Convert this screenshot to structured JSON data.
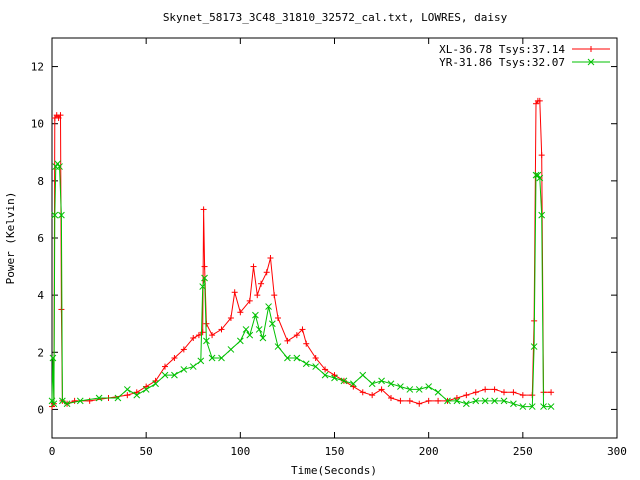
{
  "chart_data": {
    "type": "line",
    "title": "Skynet_58173_3C48_31810_32572_cal.txt, LOWRES, daisy",
    "xlabel": "Time(Seconds)",
    "ylabel": "Power (Kelvin)",
    "xlim": [
      0,
      300
    ],
    "ylim": [
      -1,
      13
    ],
    "xticks": [
      "0",
      "50",
      "100",
      "150",
      "200",
      "250",
      "300"
    ],
    "yticks": [
      "0",
      "2",
      "4",
      "6",
      "8",
      "10",
      "12"
    ],
    "grid": false,
    "legend_position": "top-right",
    "series": [
      {
        "name": "XL-36.78 Tsys:37.14",
        "color": "#ff0000",
        "marker": "plus",
        "points": [
          [
            0,
            0.1
          ],
          [
            1,
            0.2
          ],
          [
            1.5,
            10.2
          ],
          [
            2.5,
            10.3
          ],
          [
            3.5,
            10.2
          ],
          [
            4.5,
            10.3
          ],
          [
            5,
            3.5
          ],
          [
            5.5,
            0.3
          ],
          [
            8,
            0.2
          ],
          [
            12,
            0.3
          ],
          [
            20,
            0.3
          ],
          [
            30,
            0.4
          ],
          [
            40,
            0.5
          ],
          [
            45,
            0.6
          ],
          [
            50,
            0.8
          ],
          [
            55,
            1.0
          ],
          [
            60,
            1.5
          ],
          [
            65,
            1.8
          ],
          [
            70,
            2.1
          ],
          [
            75,
            2.5
          ],
          [
            78,
            2.6
          ],
          [
            80,
            2.7
          ],
          [
            80.5,
            7.0
          ],
          [
            81,
            5.0
          ],
          [
            82,
            3.0
          ],
          [
            85,
            2.6
          ],
          [
            90,
            2.8
          ],
          [
            95,
            3.2
          ],
          [
            97,
            4.1
          ],
          [
            100,
            3.4
          ],
          [
            105,
            3.8
          ],
          [
            107,
            5.0
          ],
          [
            109,
            4.0
          ],
          [
            111,
            4.4
          ],
          [
            114,
            4.8
          ],
          [
            116,
            5.3
          ],
          [
            118,
            4.0
          ],
          [
            120,
            3.2
          ],
          [
            125,
            2.4
          ],
          [
            130,
            2.6
          ],
          [
            133,
            2.8
          ],
          [
            135,
            2.3
          ],
          [
            140,
            1.8
          ],
          [
            145,
            1.4
          ],
          [
            150,
            1.2
          ],
          [
            155,
            1.0
          ],
          [
            160,
            0.8
          ],
          [
            165,
            0.6
          ],
          [
            170,
            0.5
          ],
          [
            175,
            0.7
          ],
          [
            180,
            0.4
          ],
          [
            185,
            0.3
          ],
          [
            190,
            0.3
          ],
          [
            195,
            0.2
          ],
          [
            200,
            0.3
          ],
          [
            205,
            0.3
          ],
          [
            210,
            0.3
          ],
          [
            215,
            0.4
          ],
          [
            220,
            0.5
          ],
          [
            225,
            0.6
          ],
          [
            230,
            0.7
          ],
          [
            235,
            0.7
          ],
          [
            240,
            0.6
          ],
          [
            245,
            0.6
          ],
          [
            250,
            0.5
          ],
          [
            255,
            0.5
          ],
          [
            256,
            3.1
          ],
          [
            257,
            10.7
          ],
          [
            258,
            10.8
          ],
          [
            259,
            10.8
          ],
          [
            260,
            8.9
          ],
          [
            261,
            0.6
          ],
          [
            265,
            0.6
          ]
        ]
      },
      {
        "name": "YR-31.86 Tsys:32.07",
        "color": "#00c000",
        "marker": "cross",
        "points": [
          [
            0,
            0.3
          ],
          [
            0.5,
            1.8
          ],
          [
            1,
            0.2
          ],
          [
            1.5,
            6.8
          ],
          [
            2,
            8.5
          ],
          [
            3,
            8.6
          ],
          [
            4,
            8.5
          ],
          [
            5,
            6.8
          ],
          [
            5.5,
            0.3
          ],
          [
            8,
            0.2
          ],
          [
            15,
            0.3
          ],
          [
            25,
            0.4
          ],
          [
            35,
            0.4
          ],
          [
            40,
            0.7
          ],
          [
            45,
            0.5
          ],
          [
            50,
            0.7
          ],
          [
            55,
            0.9
          ],
          [
            60,
            1.2
          ],
          [
            65,
            1.2
          ],
          [
            70,
            1.4
          ],
          [
            75,
            1.5
          ],
          [
            79,
            1.7
          ],
          [
            80,
            4.3
          ],
          [
            81,
            4.6
          ],
          [
            82,
            2.4
          ],
          [
            85,
            1.8
          ],
          [
            90,
            1.8
          ],
          [
            95,
            2.1
          ],
          [
            100,
            2.4
          ],
          [
            103,
            2.8
          ],
          [
            105,
            2.6
          ],
          [
            108,
            3.3
          ],
          [
            110,
            2.8
          ],
          [
            112,
            2.5
          ],
          [
            115,
            3.6
          ],
          [
            117,
            3.0
          ],
          [
            120,
            2.2
          ],
          [
            125,
            1.8
          ],
          [
            130,
            1.8
          ],
          [
            135,
            1.6
          ],
          [
            140,
            1.5
          ],
          [
            145,
            1.2
          ],
          [
            150,
            1.1
          ],
          [
            155,
            1.0
          ],
          [
            160,
            0.9
          ],
          [
            165,
            1.2
          ],
          [
            170,
            0.9
          ],
          [
            175,
            1.0
          ],
          [
            180,
            0.9
          ],
          [
            185,
            0.8
          ],
          [
            190,
            0.7
          ],
          [
            195,
            0.7
          ],
          [
            200,
            0.8
          ],
          [
            205,
            0.6
          ],
          [
            210,
            0.3
          ],
          [
            215,
            0.3
          ],
          [
            220,
            0.2
          ],
          [
            225,
            0.3
          ],
          [
            230,
            0.3
          ],
          [
            235,
            0.3
          ],
          [
            240,
            0.3
          ],
          [
            245,
            0.2
          ],
          [
            250,
            0.1
          ],
          [
            255,
            0.1
          ],
          [
            256,
            2.2
          ],
          [
            257,
            8.2
          ],
          [
            258,
            8.2
          ],
          [
            259,
            8.1
          ],
          [
            260,
            6.8
          ],
          [
            261,
            0.1
          ],
          [
            265,
            0.1
          ]
        ]
      }
    ]
  }
}
